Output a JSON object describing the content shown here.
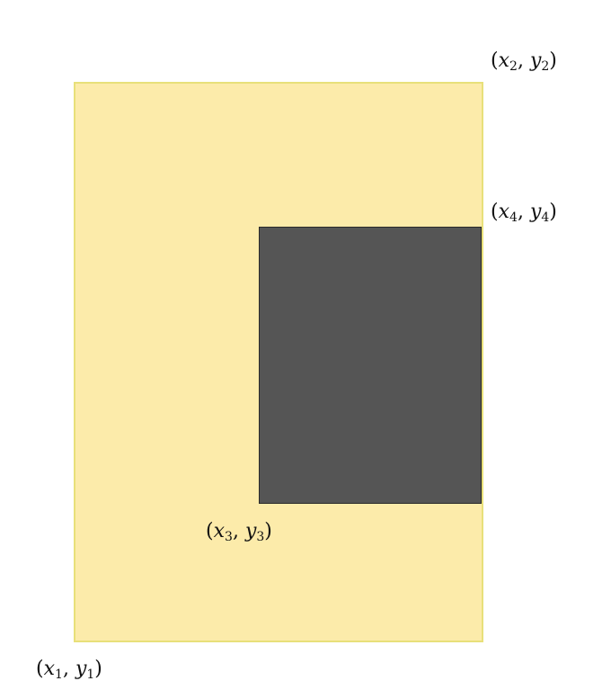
{
  "colors": {
    "outer_fill": "#fcebaa",
    "outer_border": "#e8e07a",
    "inner_fill": "#555555",
    "inner_border": "#2a2a2a"
  },
  "labels": {
    "p1": {
      "x": "x",
      "xi": "1",
      "y": "y",
      "yi": "1"
    },
    "p2": {
      "x": "x",
      "xi": "2",
      "y": "y",
      "yi": "2"
    },
    "p3": {
      "x": "x",
      "xi": "3",
      "y": "y",
      "yi": "3"
    },
    "p4": {
      "x": "x",
      "xi": "4",
      "y": "y",
      "yi": "4"
    }
  }
}
